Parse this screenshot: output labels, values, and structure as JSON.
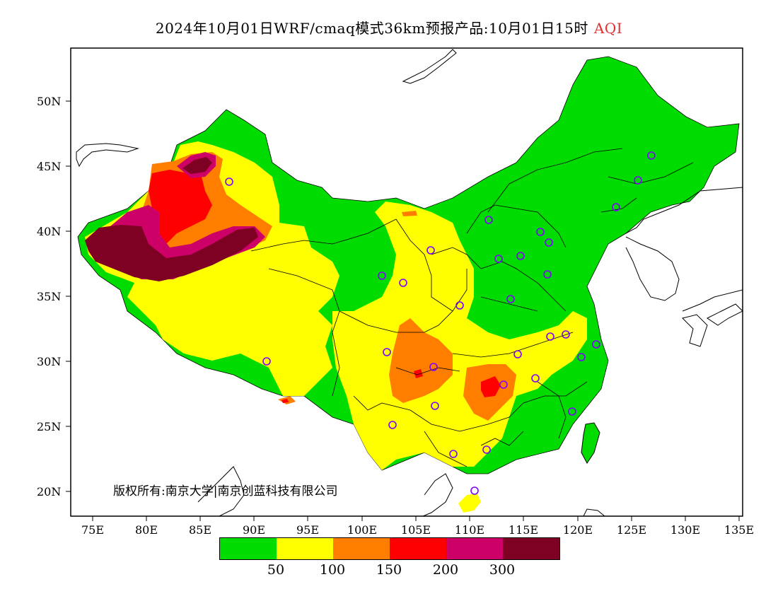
{
  "title": {
    "main": "2024年10月01日WRF/cmaq模式36km预报产品:10月01日15时",
    "variable": "AQI",
    "variable_color": "#e03030"
  },
  "axes": {
    "lat_labels": [
      "50N",
      "45N",
      "40N",
      "35N",
      "30N",
      "25N",
      "20N"
    ],
    "lon_labels": [
      "75E",
      "80E",
      "85E",
      "90E",
      "95E",
      "100E",
      "105E",
      "110E",
      "115E",
      "120E",
      "125E",
      "130E",
      "135E"
    ]
  },
  "copyright": "版权所有:南京大学|南京创蓝科技有限公司",
  "legend": {
    "colors": [
      "#00dc00",
      "#ffff00",
      "#ff7e00",
      "#ff0000",
      "#cc0066",
      "#7e0023"
    ],
    "ticks": [
      "50",
      "100",
      "150",
      "200",
      "300"
    ]
  },
  "stations": {
    "marker": "circle",
    "color": "#8000ff"
  }
}
